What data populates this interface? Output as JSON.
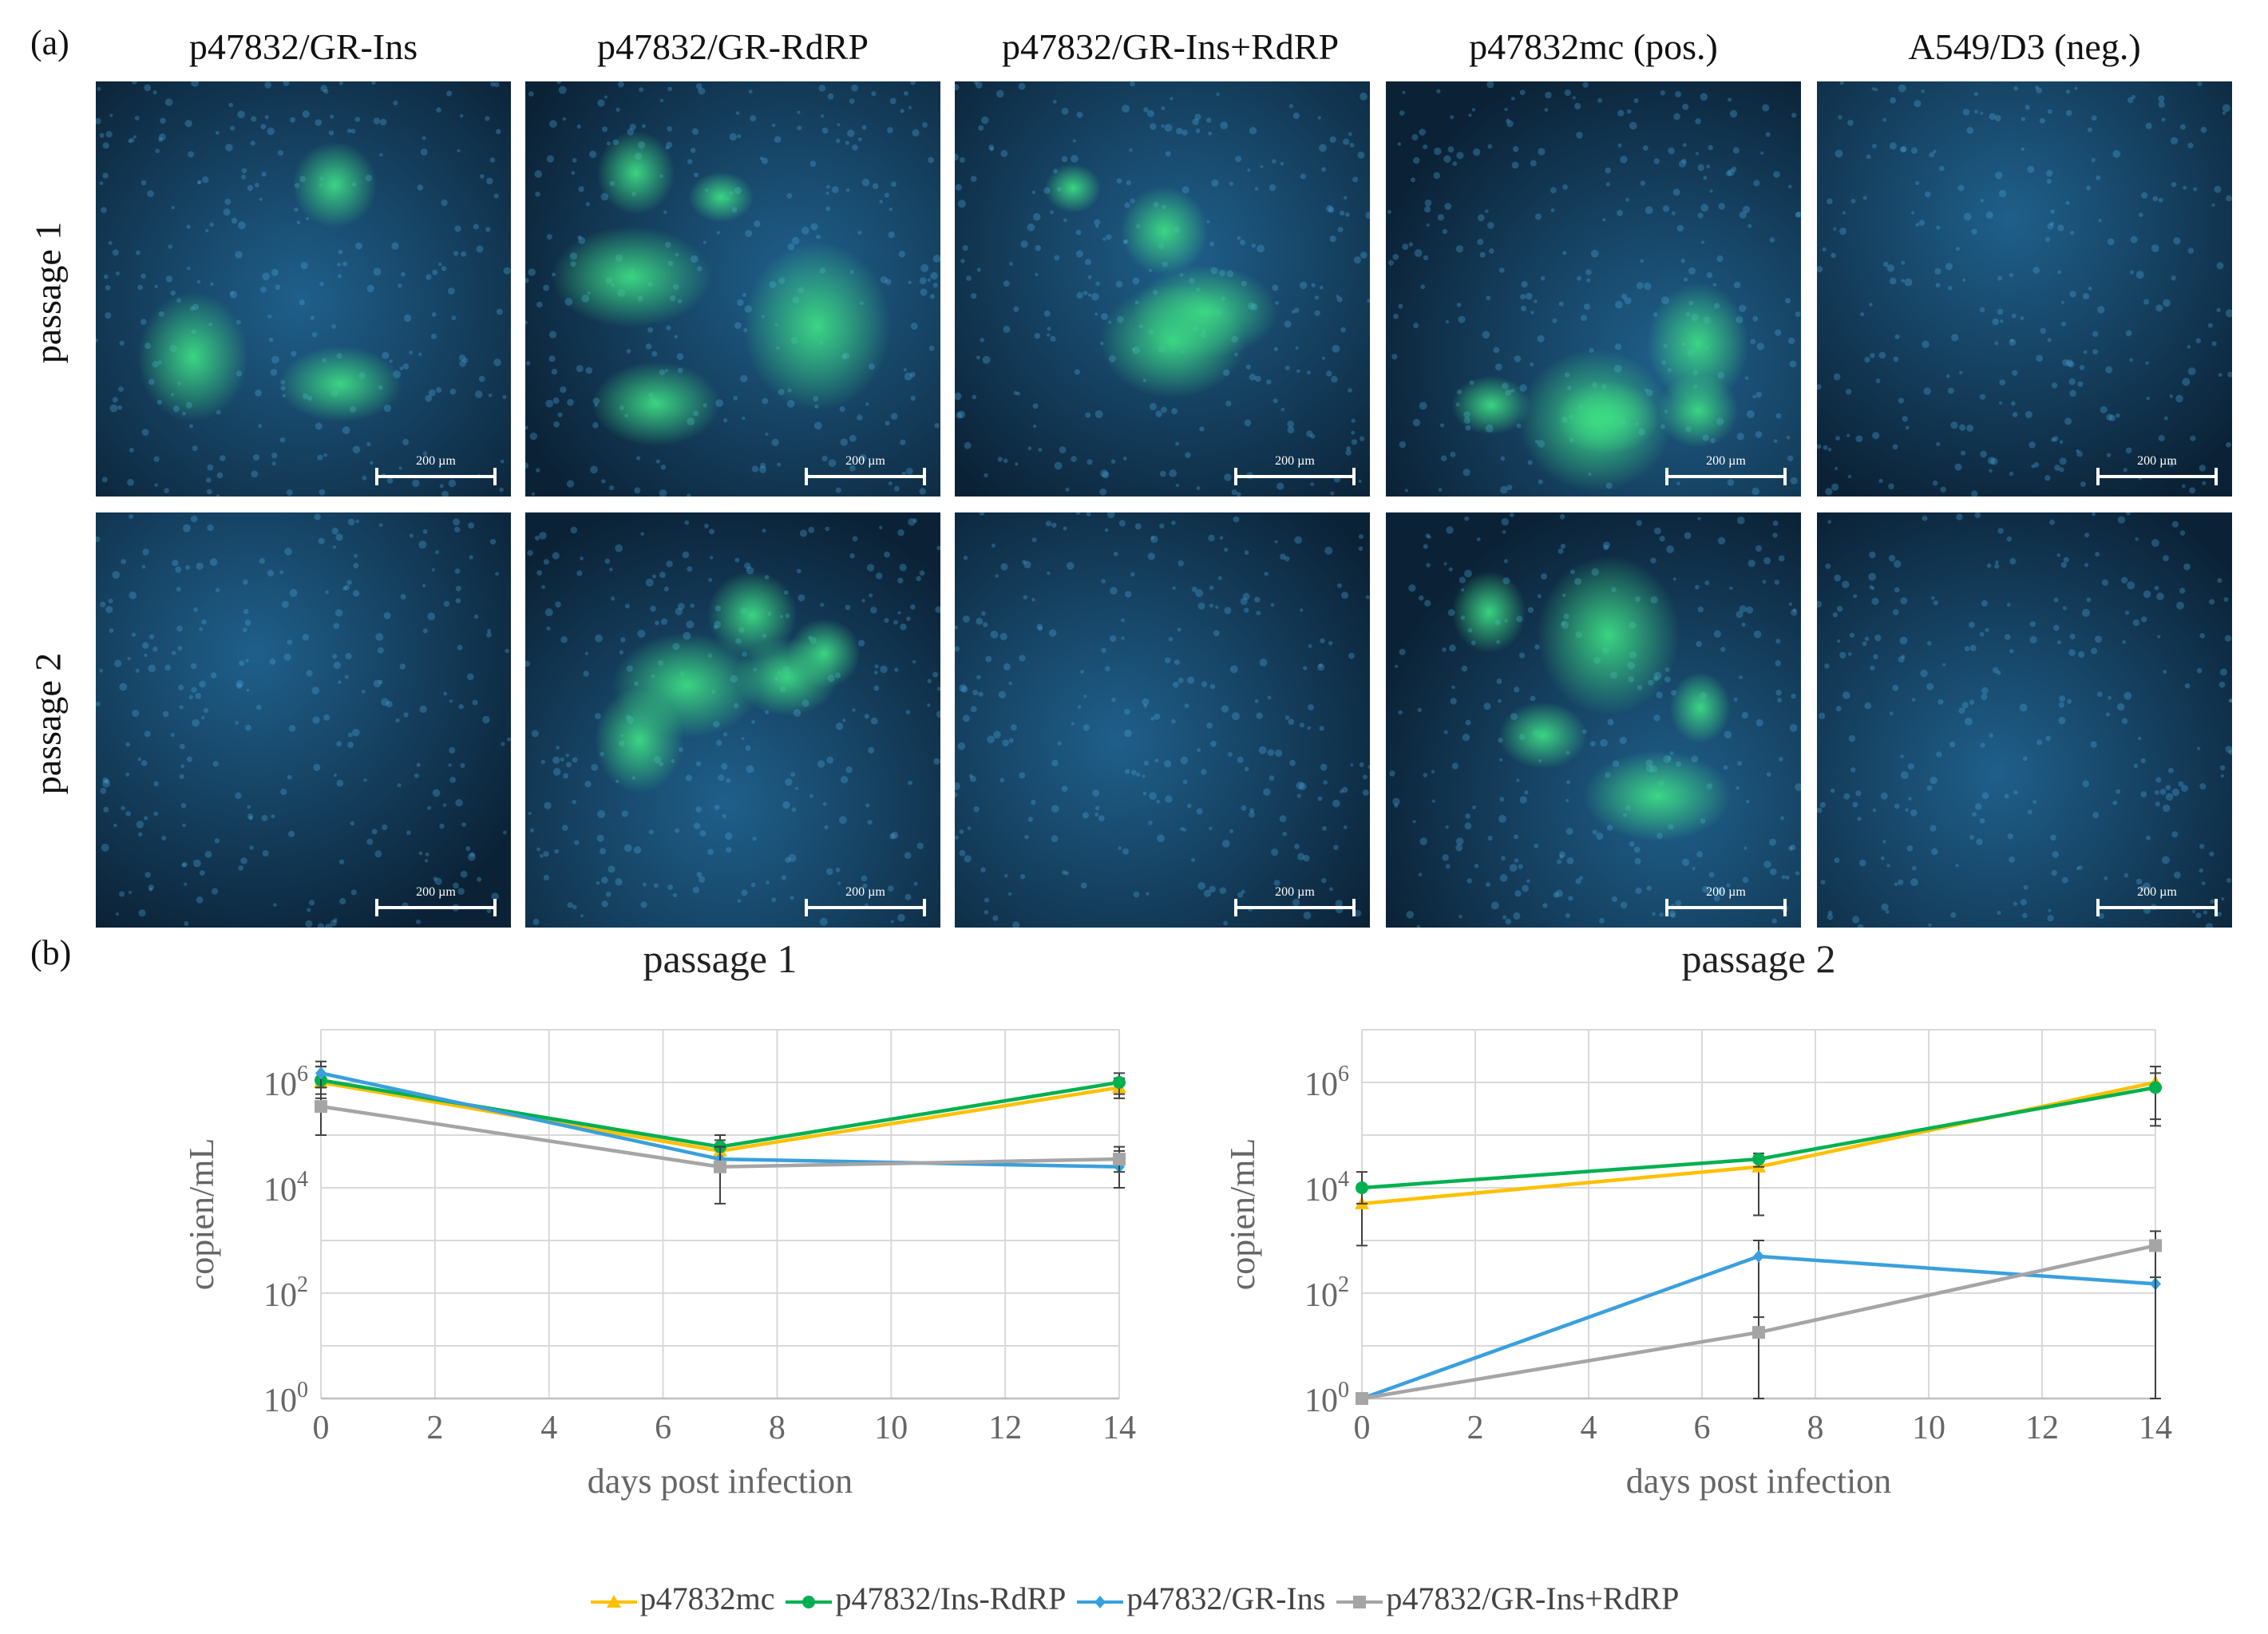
{
  "figure": {
    "label_a": "(a)",
    "label_b": "(b)",
    "columns": [
      "p47832/GR-Ins",
      "p47832/GR-RdRP",
      "p47832/GR-Ins+RdRP",
      "p47832mc (pos.)",
      "A549/D3 (neg.)"
    ],
    "rows": [
      "passage 1",
      "passage 2"
    ],
    "scale_bar": "200 µm",
    "green_signal": [
      [
        true,
        true,
        true,
        true,
        false
      ],
      [
        false,
        true,
        false,
        true,
        false
      ]
    ]
  },
  "colors": {
    "p47832mc": "#FFC000",
    "ins_rdrp": "#00B050",
    "gr_ins": "#3AA0DC",
    "gr_ins_rdrp": "#A5A5A5",
    "nuclei": "#2a7fb8",
    "gfp": "#3ddc84"
  },
  "chart_data": [
    {
      "type": "line",
      "title": "passage 1",
      "xlabel": "days post infection",
      "ylabel": "copien/mL",
      "x": [
        0,
        7,
        14
      ],
      "xlim": [
        0,
        14
      ],
      "xticks": [
        0,
        2,
        4,
        6,
        8,
        10,
        12,
        14
      ],
      "ylog": true,
      "ylim_log10": [
        0,
        7
      ],
      "ytick_labels": [
        "10^0",
        "10^2",
        "10^4",
        "10^6"
      ],
      "series": [
        {
          "name": "p47832mc",
          "color": "#FFC000",
          "marker": "triangle",
          "values": [
            1000000,
            50000,
            800000
          ],
          "err": [
            [
              500000,
              2000000
            ],
            [
              30000,
              80000
            ],
            [
              500000,
              1200000
            ]
          ]
        },
        {
          "name": "p47832/Ins-RdRP",
          "color": "#00B050",
          "marker": "circle",
          "values": [
            1100000,
            60000,
            1000000
          ],
          "err": [
            [
              600000,
              2000000
            ],
            [
              30000,
              100000
            ],
            [
              600000,
              1500000
            ]
          ]
        },
        {
          "name": "p47832/GR-Ins",
          "color": "#3AA0DC",
          "marker": "diamond",
          "values": [
            1500000,
            35000,
            25000
          ],
          "err": [
            [
              800000,
              2500000
            ],
            [
              20000,
              60000
            ],
            [
              10000,
              50000
            ]
          ]
        },
        {
          "name": "p47832/GR-Ins+RdRP",
          "color": "#A5A5A5",
          "marker": "square",
          "values": [
            350000,
            25000,
            35000
          ],
          "err": [
            [
              100000,
              800000
            ],
            [
              5000,
              60000
            ],
            [
              20000,
              60000
            ]
          ]
        }
      ]
    },
    {
      "type": "line",
      "title": "passage 2",
      "xlabel": "days post infection",
      "ylabel": "copien/mL",
      "x": [
        0,
        7,
        14
      ],
      "xlim": [
        0,
        14
      ],
      "xticks": [
        0,
        2,
        4,
        6,
        8,
        10,
        12,
        14
      ],
      "ylog": true,
      "ylim_log10": [
        0,
        7
      ],
      "ytick_labels": [
        "10^0",
        "10^2",
        "10^4",
        "10^6"
      ],
      "series": [
        {
          "name": "p47832mc",
          "color": "#FFC000",
          "marker": "triangle",
          "values": [
            5000,
            25000,
            1000000
          ],
          "err": [
            [
              800,
              10000
            ],
            [
              3000,
              40000
            ],
            [
              200000,
              2000000
            ]
          ]
        },
        {
          "name": "p47832/Ins-RdRP",
          "color": "#00B050",
          "marker": "circle",
          "values": [
            10000,
            35000,
            800000
          ],
          "err": [
            [
              5000,
              20000
            ],
            [
              25000,
              45000
            ],
            [
              150000,
              1500000
            ]
          ]
        },
        {
          "name": "p47832/GR-Ins",
          "color": "#3AA0DC",
          "marker": "diamond",
          "values": [
            1,
            500,
            150
          ],
          "err": [
            [
              1,
              1
            ],
            [
              1,
              1000
            ],
            [
              1,
              200
            ]
          ]
        },
        {
          "name": "p47832/GR-Ins+RdRP",
          "color": "#A5A5A5",
          "marker": "square",
          "values": [
            1,
            18,
            800
          ],
          "err": [
            [
              1,
              1
            ],
            [
              1,
              35
            ],
            [
              1,
              1500
            ]
          ]
        }
      ]
    }
  ],
  "legend": [
    {
      "label": "p47832mc",
      "color": "#FFC000",
      "marker": "triangle"
    },
    {
      "label": "p47832/Ins-RdRP",
      "color": "#00B050",
      "marker": "circle"
    },
    {
      "label": "p47832/GR-Ins",
      "color": "#3AA0DC",
      "marker": "diamond"
    },
    {
      "label": "p47832/GR-Ins+RdRP",
      "color": "#A5A5A5",
      "marker": "square"
    }
  ]
}
